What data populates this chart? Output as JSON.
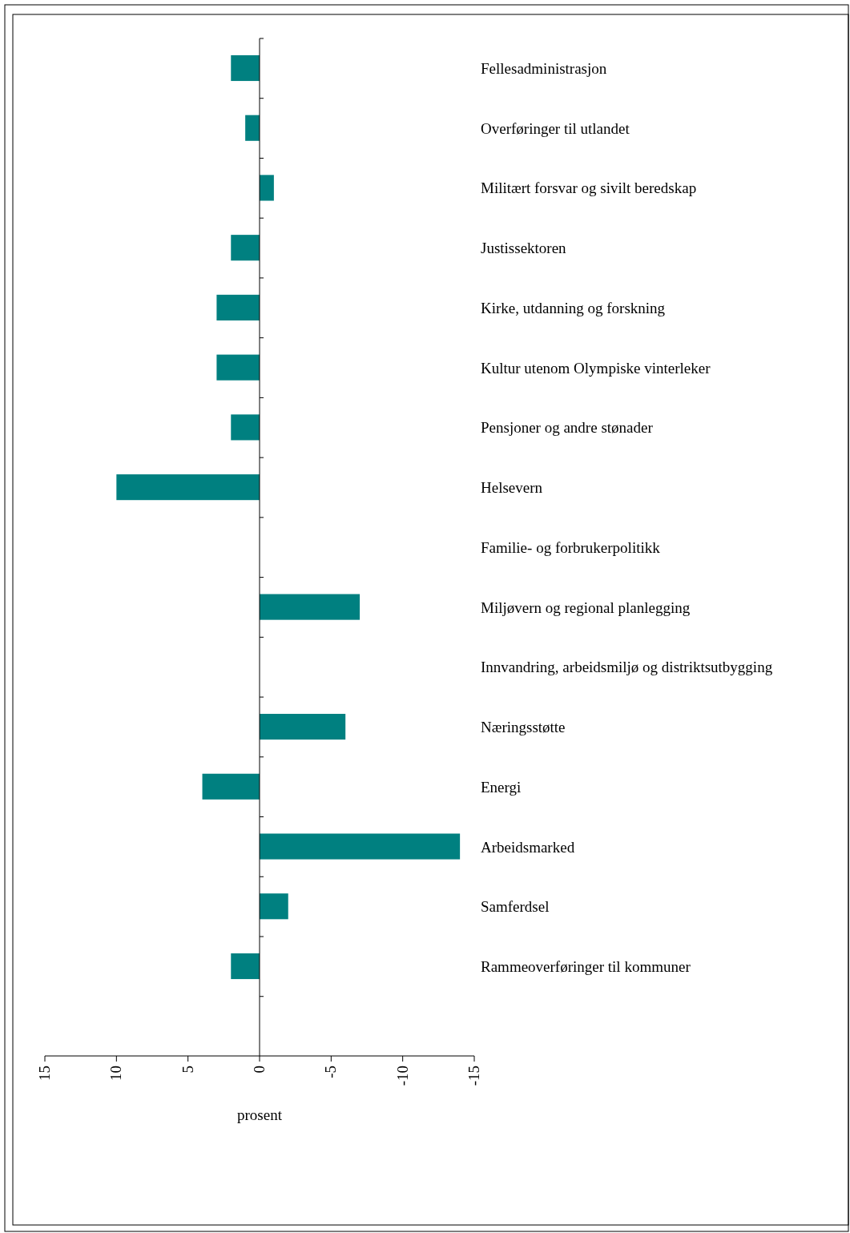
{
  "chart_data": {
    "type": "bar",
    "orientation": "horizontal",
    "xlabel": "prosent",
    "categories": [
      "Fellesadministrasjon",
      "Overføringer til utlandet",
      "Militært forsvar og sivilt beredskap",
      "Justissektoren",
      "Kirke, utdanning og forskning",
      "Kultur utenom Olympiske vinterleker",
      "Pensjoner og andre stønader",
      "Helsevern",
      "Familie- og forbrukerpolitikk",
      "Miljøvern og regional planlegging",
      "Innvandring, arbeidsmiljø og distriktsutbygging",
      "Næringsstøtte",
      "Energi",
      "Arbeidsmarked",
      "Samferdsel",
      "Rammeoverføringer til kommuner"
    ],
    "values": [
      2,
      1,
      -1,
      2,
      3,
      3,
      2,
      10,
      0,
      -7,
      0,
      -6,
      4,
      -14,
      -2,
      2
    ],
    "color": "#008080",
    "xlim": [
      15,
      -15
    ],
    "xticks": [
      15,
      10,
      5,
      0,
      -5,
      -10,
      -15
    ]
  }
}
